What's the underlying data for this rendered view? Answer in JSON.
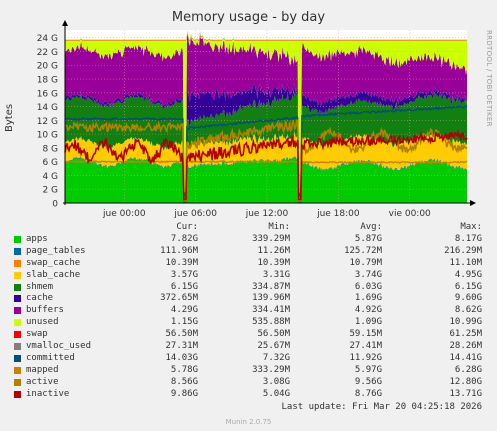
{
  "chart_data": {
    "type": "area",
    "title": "Memory usage - by day",
    "ylabel": "Bytes",
    "watermark": "RRDTOOL / TOBI OETIKER",
    "ylim": [
      0,
      25
    ],
    "yticks": [
      "0",
      "2 G",
      "4 G",
      "6 G",
      "8 G",
      "10 G",
      "12 G",
      "14 G",
      "16 G",
      "18 G",
      "20 G",
      "22 G",
      "24 G"
    ],
    "xticks": [
      "jue 00:00",
      "jue 06:00",
      "jue 12:00",
      "jue 18:00",
      "vie 00:00"
    ],
    "grid": true,
    "columns": [
      "Cur:",
      "Min:",
      "Avg:",
      "Max:"
    ],
    "series": [
      {
        "name": "apps",
        "color": "#00cc00",
        "cur": "7.82G",
        "min": "339.29M",
        "avg": "5.87G",
        "max": "8.17G"
      },
      {
        "name": "page_tables",
        "color": "#0066b3",
        "cur": "111.96M",
        "min": "11.26M",
        "avg": "125.72M",
        "max": "216.29M"
      },
      {
        "name": "swap_cache",
        "color": "#ff8000",
        "cur": "10.39M",
        "min": "10.39M",
        "avg": "10.79M",
        "max": "11.10M"
      },
      {
        "name": "slab_cache",
        "color": "#ffcc00",
        "cur": "3.57G",
        "min": "3.31G",
        "avg": "3.74G",
        "max": "4.95G"
      },
      {
        "name": "shmem",
        "color": "#108010",
        "cur": "6.15G",
        "min": "334.87M",
        "avg": "6.03G",
        "max": "6.15G"
      },
      {
        "name": "cache",
        "color": "#330099",
        "cur": "372.65M",
        "min": "139.96M",
        "avg": "1.69G",
        "max": "9.60G"
      },
      {
        "name": "buffers",
        "color": "#990099",
        "cur": "4.29G",
        "min": "334.41M",
        "avg": "4.92G",
        "max": "8.62G"
      },
      {
        "name": "unused",
        "color": "#ccff00",
        "cur": "1.15G",
        "min": "535.88M",
        "avg": "1.09G",
        "max": "10.99G"
      },
      {
        "name": "swap",
        "color": "#ff0000",
        "cur": "56.50M",
        "min": "56.50M",
        "avg": "59.15M",
        "max": "61.25M"
      },
      {
        "name": "vmalloc_used",
        "color": "#808080",
        "cur": "27.31M",
        "min": "25.67M",
        "avg": "27.41M",
        "max": "28.26M"
      },
      {
        "name": "committed",
        "color": "#004d80",
        "cur": "14.03G",
        "min": "7.32G",
        "avg": "11.92G",
        "max": "14.41G"
      },
      {
        "name": "mapped",
        "color": "#cc8000",
        "cur": "5.78G",
        "min": "333.29M",
        "avg": "5.97G",
        "max": "6.28G"
      },
      {
        "name": "active",
        "color": "#b38000",
        "cur": "8.56G",
        "min": "3.08G",
        "avg": "9.56G",
        "max": "12.80G"
      },
      {
        "name": "inactive",
        "color": "#b30000",
        "cur": "9.86G",
        "min": "5.04G",
        "avg": "8.76G",
        "max": "13.71G"
      }
    ]
  },
  "footer": {
    "last_update": "Last update: Fri Mar 20 04:25:18 2026",
    "version": "Munin 2.0.75"
  }
}
